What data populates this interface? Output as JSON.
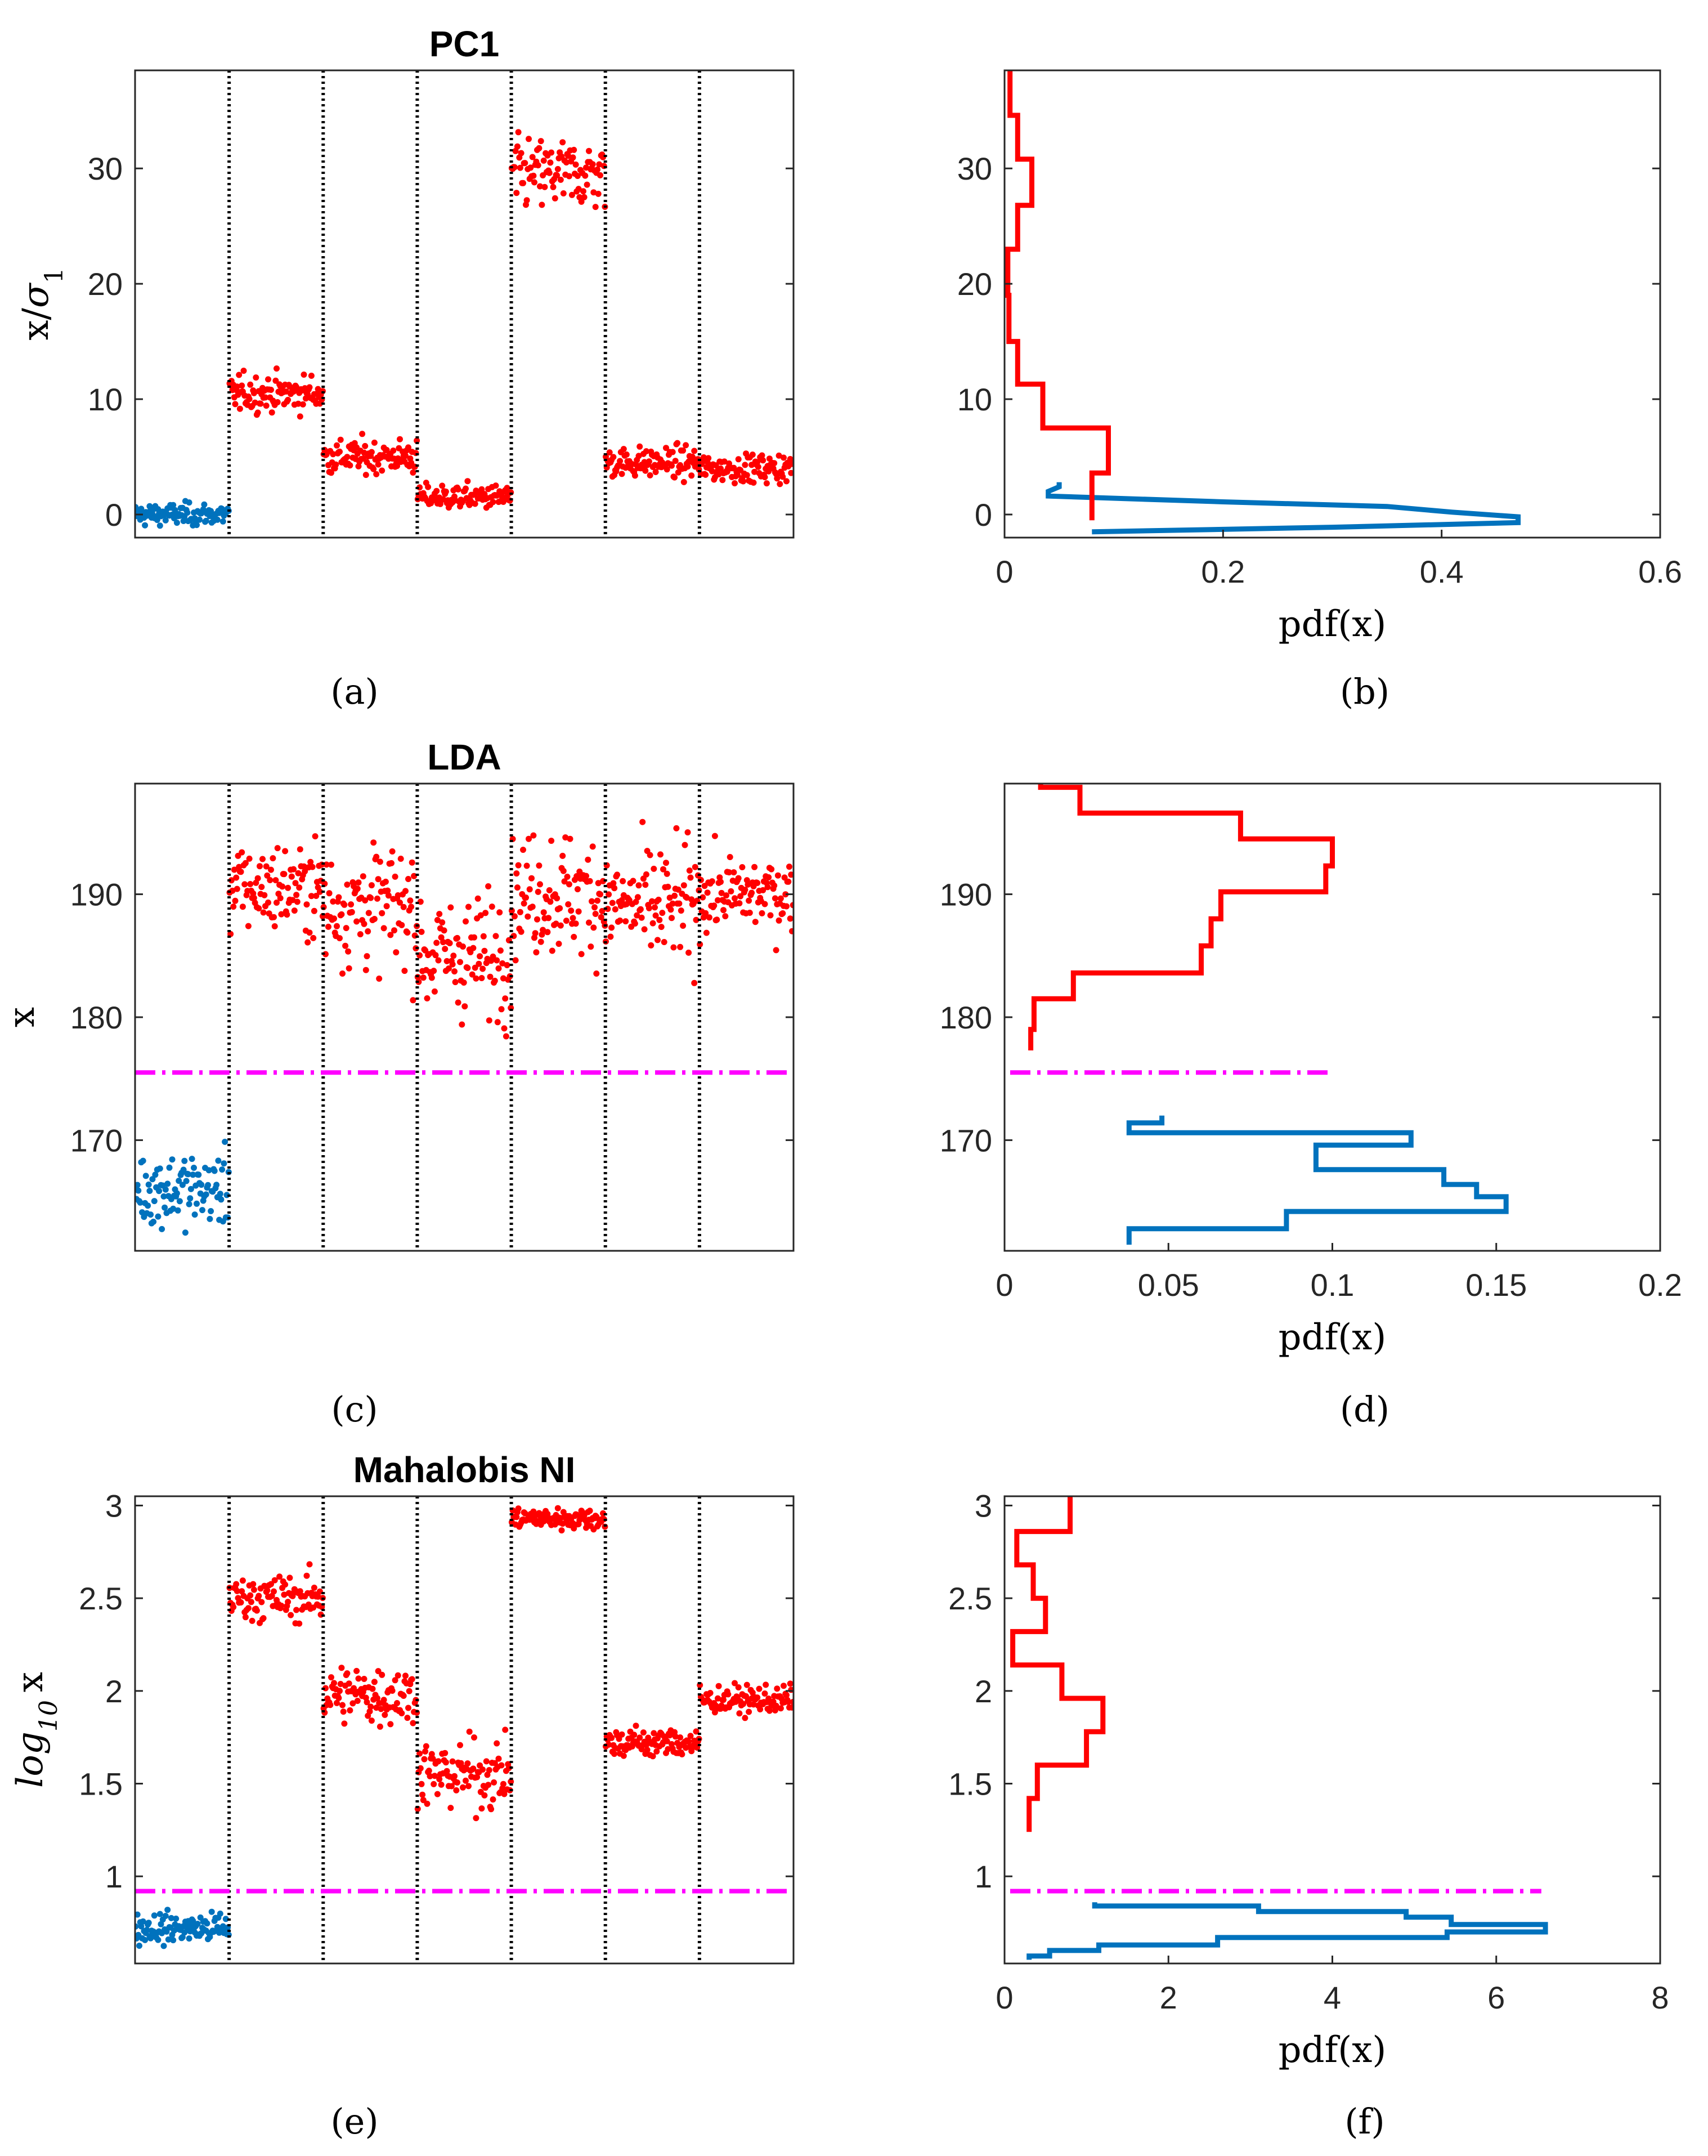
{
  "figure": {
    "panel_labels": [
      "(a)",
      "(b)",
      "(c)",
      "(d)",
      "(e)",
      "(f)"
    ],
    "colors": {
      "normal": "#0072BD",
      "fault": "#FF0000",
      "threshold": "#FF00FF",
      "divider": "#000000"
    }
  },
  "chart_data": [
    {
      "id": "a",
      "type": "scatter",
      "title": "PC1",
      "xlabel": "",
      "ylabel": "x/σ1",
      "ylim": [
        -2,
        38.5
      ],
      "yticks": [
        0,
        10,
        20,
        30
      ],
      "segments": 7,
      "points_per_segment": 100,
      "series": [
        {
          "name": "normal",
          "segment_means": [
            0
          ],
          "segment_spread": [
            0.8
          ]
        },
        {
          "name": "fault",
          "segment_means": [
            10.5,
            5,
            1.5,
            29.5,
            4.5,
            4
          ],
          "segment_spread": [
            1.3,
            1.2,
            0.9,
            2.5,
            1.1,
            1.0
          ]
        }
      ],
      "threshold": null
    },
    {
      "id": "b",
      "type": "line",
      "title": "",
      "xlabel": "pdf(x)",
      "ylabel": "",
      "xlim": [
        0,
        0.6
      ],
      "xticks": [
        0,
        0.2,
        0.4,
        0.6
      ],
      "ylim": [
        -2,
        38.5
      ],
      "yticks": [
        0,
        10,
        20,
        30
      ],
      "series": [
        {
          "name": "normal",
          "step_x": [
            0.08,
            0.3,
            0.47,
            0.47,
            0.41,
            0.35,
            0.2,
            0.04,
            0.04,
            0.05,
            0.05
          ],
          "step_y": [
            -1.5,
            -1.1,
            -0.7,
            -0.2,
            0.2,
            0.7,
            1.1,
            1.6,
            2.0,
            2.4,
            2.8
          ]
        },
        {
          "name": "fault",
          "step_x": [
            0.08,
            0.08,
            0.095,
            0.095,
            0.035,
            0.035,
            0.012,
            0.012,
            0.004,
            0.004,
            0.003,
            0.003,
            0.012,
            0.012,
            0.025,
            0.025,
            0.012,
            0.012,
            0.005,
            0.005
          ],
          "step_y": [
            -0.5,
            3.6,
            3.6,
            7.5,
            7.5,
            11.3,
            11.3,
            15.0,
            15.0,
            19.0,
            19.0,
            23.0,
            23.0,
            26.8,
            26.8,
            30.8,
            30.8,
            34.6,
            34.6,
            38.5
          ]
        }
      ],
      "threshold": null
    },
    {
      "id": "c",
      "type": "scatter",
      "title": "LDA",
      "xlabel": "",
      "ylabel": "x",
      "ylim": [
        161,
        199
      ],
      "yticks": [
        170,
        180,
        190
      ],
      "segments": 7,
      "points_per_segment": 100,
      "series": [
        {
          "name": "normal",
          "segment_means": [
            166
          ],
          "segment_spread": [
            2.5
          ]
        },
        {
          "name": "fault",
          "segment_means": [
            190.5,
            189,
            185,
            190,
            189,
            190
          ],
          "segment_spread": [
            3,
            4,
            4,
            4,
            4,
            2.5
          ]
        }
      ],
      "threshold": 175.5
    },
    {
      "id": "d",
      "type": "line",
      "title": "",
      "xlabel": "pdf(x)",
      "ylabel": "",
      "xlim": [
        0,
        0.2
      ],
      "xticks": [
        0,
        0.05,
        0.1,
        0.15,
        0.2
      ],
      "ylim": [
        161,
        199
      ],
      "yticks": [
        170,
        180,
        190
      ],
      "series": [
        {
          "name": "normal",
          "step_x": [
            0.038,
            0.038,
            0.086,
            0.086,
            0.153,
            0.153,
            0.144,
            0.144,
            0.134,
            0.134,
            0.095,
            0.095,
            0.124,
            0.124,
            0.038,
            0.038,
            0.048,
            0.048
          ],
          "step_y": [
            161.5,
            162.8,
            162.8,
            164.2,
            164.2,
            165.4,
            165.4,
            166.4,
            166.4,
            167.6,
            167.6,
            169.6,
            169.6,
            170.6,
            170.6,
            171.4,
            171.4,
            172.0
          ]
        },
        {
          "name": "fault",
          "step_x": [
            0.008,
            0.008,
            0.009,
            0.009,
            0.021,
            0.021,
            0.06,
            0.06,
            0.063,
            0.063,
            0.066,
            0.066,
            0.098,
            0.098,
            0.1,
            0.1,
            0.072,
            0.072,
            0.023,
            0.023,
            0.011,
            0.011
          ],
          "step_y": [
            177.3,
            179.0,
            179.0,
            181.5,
            181.5,
            183.6,
            183.6,
            185.8,
            185.8,
            188.0,
            188.0,
            190.2,
            190.2,
            192.3,
            192.3,
            194.5,
            194.5,
            196.6,
            196.6,
            198.7,
            198.7,
            199.0
          ]
        }
      ],
      "threshold": 175.5
    },
    {
      "id": "e",
      "type": "scatter",
      "title": "Mahalobis NI",
      "xlabel": "",
      "ylabel": "log10 x",
      "ylim": [
        0.53,
        3.05
      ],
      "yticks": [
        1,
        1.5,
        2,
        2.5,
        3
      ],
      "segments": 7,
      "points_per_segment": 100,
      "series": [
        {
          "name": "normal",
          "segment_means": [
            0.72
          ],
          "segment_spread": [
            0.07
          ]
        },
        {
          "name": "fault",
          "segment_means": [
            2.5,
            1.98,
            1.55,
            2.93,
            1.72,
            1.95
          ],
          "segment_spread": [
            0.1,
            0.14,
            0.15,
            0.05,
            0.07,
            0.06
          ]
        }
      ],
      "threshold": 0.92
    },
    {
      "id": "f",
      "type": "line",
      "title": "",
      "xlabel": "pdf(x)",
      "ylabel": "",
      "xlim": [
        0,
        8
      ],
      "xticks": [
        0,
        2,
        4,
        6,
        8
      ],
      "ylim": [
        0.53,
        3.05
      ],
      "yticks": [
        1,
        1.5,
        2,
        2.5,
        3
      ],
      "series": [
        {
          "name": "normal",
          "step_x": [
            0.3,
            0.3,
            0.55,
            0.55,
            1.15,
            1.15,
            2.6,
            2.6,
            5.4,
            5.4,
            6.6,
            6.6,
            5.45,
            5.45,
            4.9,
            4.9,
            3.1,
            3.1,
            1.1,
            1.1
          ],
          "step_y": [
            0.55,
            0.57,
            0.57,
            0.6,
            0.6,
            0.63,
            0.63,
            0.67,
            0.67,
            0.7,
            0.7,
            0.74,
            0.74,
            0.78,
            0.78,
            0.81,
            0.81,
            0.84,
            0.84,
            0.86
          ]
        },
        {
          "name": "fault",
          "step_x": [
            0.3,
            0.3,
            0.4,
            0.4,
            1.0,
            1.0,
            1.2,
            1.2,
            0.7,
            0.7,
            0.1,
            0.1,
            0.5,
            0.5,
            0.35,
            0.35,
            0.15,
            0.15,
            0.8,
            0.8
          ],
          "step_y": [
            1.24,
            1.42,
            1.42,
            1.6,
            1.6,
            1.78,
            1.78,
            1.96,
            1.96,
            2.14,
            2.14,
            2.32,
            2.32,
            2.5,
            2.5,
            2.68,
            2.68,
            2.86,
            2.86,
            3.05
          ]
        }
      ],
      "threshold": 0.92
    }
  ]
}
